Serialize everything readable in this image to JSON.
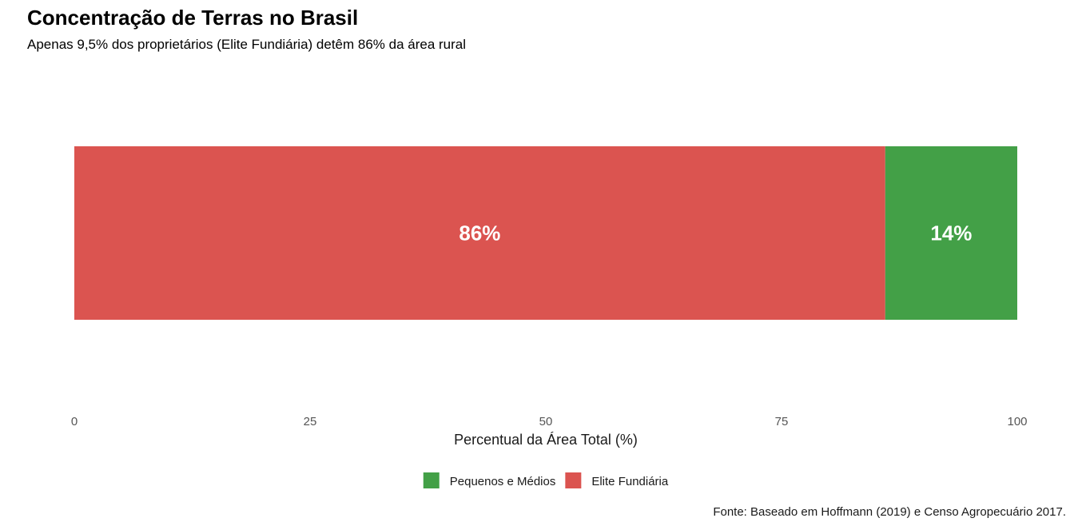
{
  "chart_data": {
    "type": "bar",
    "orientation": "horizontal",
    "stacked": true,
    "title": "Concentração de Terras no Brasil",
    "subtitle": "Apenas 9,5% dos proprietários (Elite Fundiária) detêm 86% da área rural",
    "xlabel": "Percentual da Área Total (%)",
    "ylabel": "",
    "xlim": [
      0,
      100
    ],
    "x_ticks": [
      "0",
      "25",
      "50",
      "75",
      "100"
    ],
    "x_tick_values": [
      0,
      25,
      50,
      75,
      100
    ],
    "grid": false,
    "legend_position": "bottom",
    "series": [
      {
        "name": "Elite Fundiária",
        "value": 86,
        "label": "86%",
        "color": "#DB5450"
      },
      {
        "name": "Pequenos e Médios",
        "value": 14,
        "label": "14%",
        "color": "#43A047"
      }
    ],
    "legend": [
      {
        "name": "Pequenos e Médios",
        "color": "#43A047"
      },
      {
        "name": "Elite Fundiária",
        "color": "#DB5450"
      }
    ],
    "caption": "Fonte: Baseado em Hoffmann (2019) e Censo Agropecuário 2017."
  }
}
